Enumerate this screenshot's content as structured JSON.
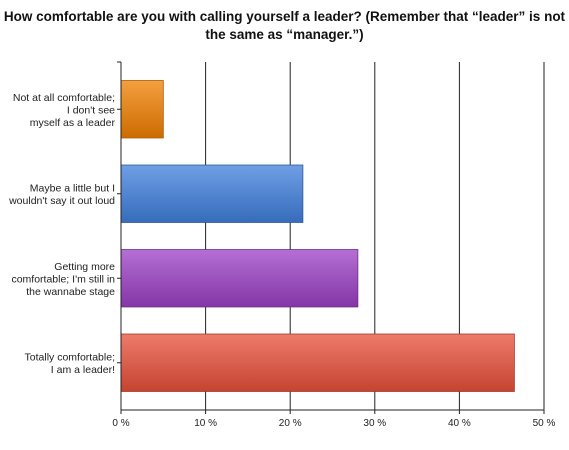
{
  "chart_data": {
    "type": "bar",
    "orientation": "horizontal",
    "title": "How comfortable are you with calling yourself a leader? (Remember that “leader” is not the same as “manager.”)",
    "categories": [
      [
        "Not at all comfortable;",
        "I don't see",
        "myself as a leader"
      ],
      [
        "Maybe a little but I",
        "wouldn't say it out loud"
      ],
      [
        "Getting more",
        "comfortable; I'm still in",
        "the wannabe stage"
      ],
      [
        "Totally comfortable;",
        "I am a leader!"
      ]
    ],
    "values": [
      5,
      21.5,
      28,
      46.5
    ],
    "colors": [
      "#f07f00",
      "#3f7fdc",
      "#9b3fc5",
      "#e84f3a"
    ],
    "xlim": [
      0,
      50
    ],
    "xticks": [
      0,
      10,
      20,
      30,
      40,
      50
    ],
    "xtick_labels": [
      "0 %",
      "10 %",
      "20 %",
      "30 %",
      "40 %",
      "50 %"
    ],
    "xlabel": "",
    "ylabel": "",
    "grid": true,
    "legend": "none"
  }
}
